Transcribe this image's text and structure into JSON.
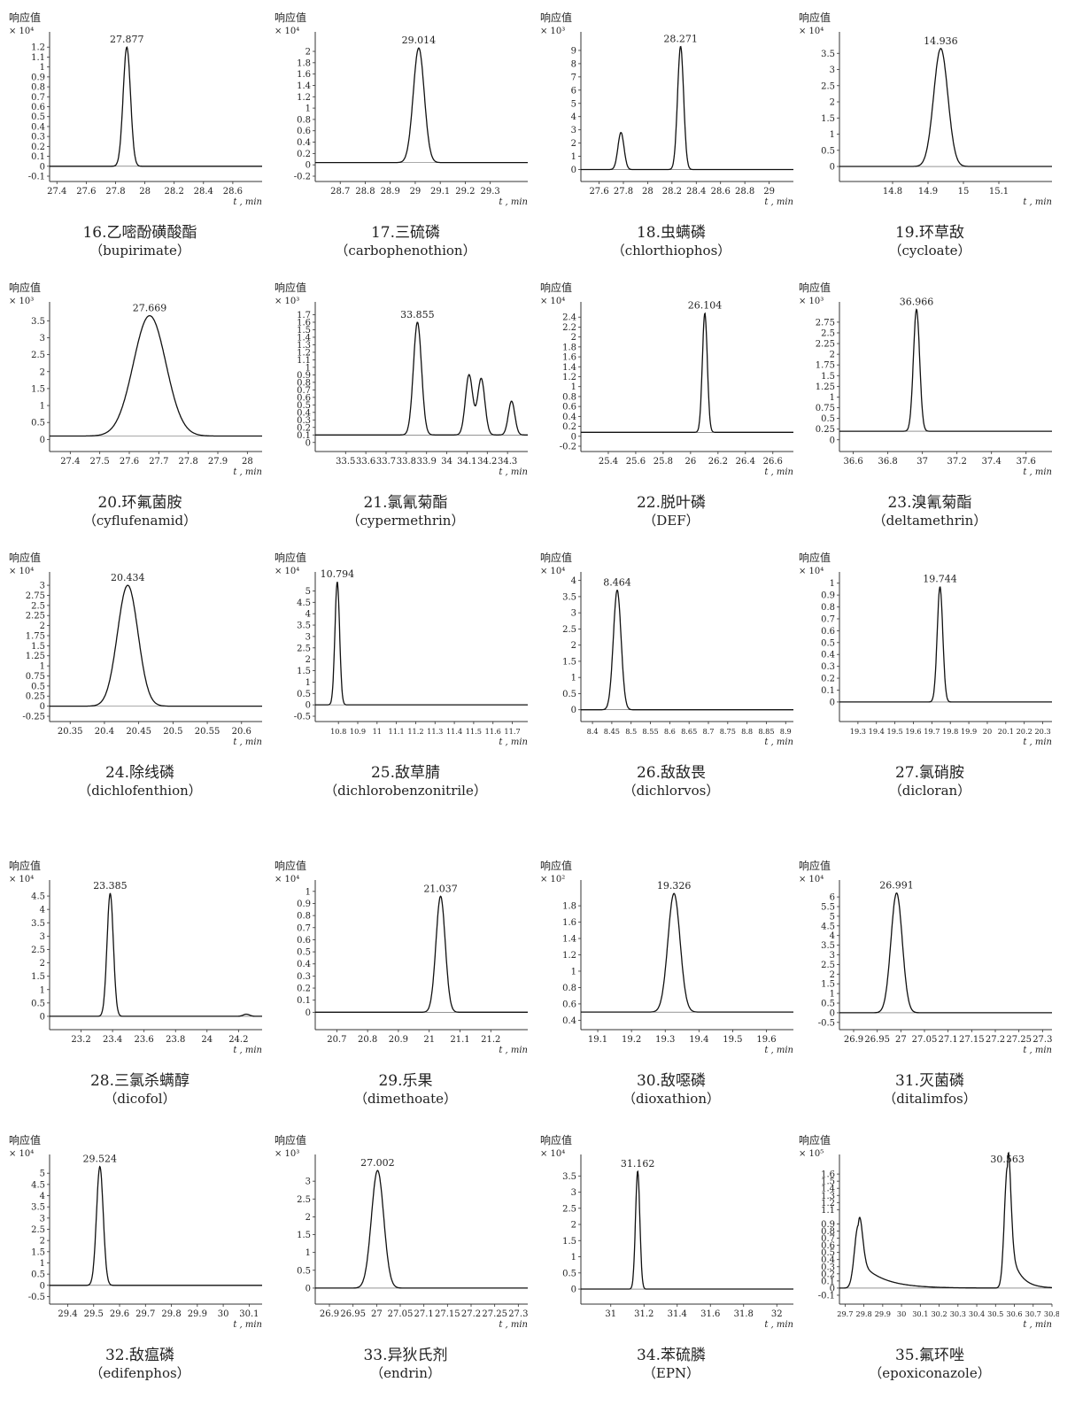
{
  "common": {
    "ylabel": "响应值",
    "xunit": "t , min"
  },
  "chart_data": [
    {
      "type": "line",
      "id": "16",
      "title_cn": "16.乙嘧酚磺酸酯",
      "title_en": "（bupirimate）",
      "scale": "× 10⁴",
      "ylim": [
        -0.1,
        1.3
      ],
      "yticks": [
        -0.1,
        0,
        0.1,
        0.2,
        0.3,
        0.4,
        0.5,
        0.6,
        0.7,
        0.8,
        0.9,
        1,
        1.1,
        1.2
      ],
      "xlim": [
        27.35,
        28.8
      ],
      "xticks": [
        27.4,
        27.6,
        27.8,
        28,
        28.2,
        28.4,
        28.6
      ],
      "peaks": [
        {
          "rt": 27.877,
          "h": 1.2,
          "w": 0.025,
          "label": "27.877"
        }
      ],
      "baseline": 0
    },
    {
      "type": "line",
      "id": "17",
      "title_cn": "17.三硫磷",
      "title_en": "（carbophenothion）",
      "scale": "× 10⁴",
      "ylim": [
        -0.2,
        2.25
      ],
      "yticks": [
        -0.2,
        0,
        0.2,
        0.4,
        0.6,
        0.8,
        1,
        1.2,
        1.4,
        1.6,
        1.8,
        2
      ],
      "xlim": [
        28.6,
        29.45
      ],
      "xticks": [
        28.7,
        28.8,
        28.9,
        29,
        29.1,
        29.2,
        29.3
      ],
      "peaks": [
        {
          "rt": 29.014,
          "h": 2.02,
          "w": 0.022,
          "label": "29.014"
        }
      ],
      "baseline": 0.04
    },
    {
      "type": "line",
      "id": "18",
      "title_cn": "18.虫螨磷",
      "title_en": "（chlorthiophos）",
      "scale": "× 10³",
      "ylim": [
        -0.5,
        10
      ],
      "yticks": [
        0,
        1,
        2,
        3,
        4,
        5,
        6,
        7,
        8,
        9
      ],
      "xlim": [
        27.45,
        29.2
      ],
      "xticks": [
        27.6,
        27.8,
        28,
        28.2,
        28.4,
        28.6,
        28.8,
        29
      ],
      "peaks": [
        {
          "rt": 27.78,
          "h": 2.8,
          "w": 0.025,
          "label": ""
        },
        {
          "rt": 28.271,
          "h": 9.3,
          "w": 0.025,
          "label": "28.271"
        }
      ],
      "baseline": 0
    },
    {
      "type": "line",
      "id": "19",
      "title_cn": "19.环草敌",
      "title_en": "（cycloate）",
      "scale": "× 10⁴",
      "ylim": [
        -0.3,
        4.0
      ],
      "yticks": [
        0,
        0.5,
        1,
        1.5,
        2,
        2.5,
        3,
        3.5
      ],
      "xlim": [
        14.65,
        15.25
      ],
      "xticks": [
        14.8,
        14.9,
        15,
        15.1
      ],
      "peaks": [
        {
          "rt": 14.936,
          "h": 3.65,
          "w": 0.02,
          "label": "14.936"
        }
      ],
      "baseline": 0
    },
    {
      "type": "line",
      "id": "20",
      "title_cn": "20.环氟菌胺",
      "title_en": "（cyflufenamid）",
      "scale": "× 10³",
      "ylim": [
        -0.2,
        3.9
      ],
      "yticks": [
        0,
        0.5,
        1,
        1.5,
        2,
        2.5,
        3,
        3.5
      ],
      "xlim": [
        27.33,
        28.05
      ],
      "xticks": [
        27.4,
        27.5,
        27.6,
        27.7,
        27.8,
        27.9,
        28
      ],
      "peaks": [
        {
          "rt": 27.669,
          "h": 3.55,
          "w": 0.055,
          "label": "27.669"
        }
      ],
      "baseline": 0.1
    },
    {
      "type": "line",
      "id": "21",
      "title_cn": "21.氯氰菊酯",
      "title_en": "（cypermethrin）",
      "scale": "× 10³",
      "ylim": [
        -0.05,
        1.8
      ],
      "yticks": [
        0,
        0.1,
        0.2,
        0.3,
        0.4,
        0.5,
        0.6,
        0.7,
        0.8,
        0.9,
        1,
        1.1,
        1.2,
        1.3,
        1.4,
        1.5,
        1.6,
        1.7
      ],
      "xlim": [
        33.35,
        34.4
      ],
      "xticks": [
        33.5,
        33.6,
        33.7,
        33.8,
        33.9,
        34,
        34.1,
        34.2,
        34.3
      ],
      "peaks": [
        {
          "rt": 33.855,
          "h": 1.5,
          "w": 0.02,
          "label": "33.855"
        },
        {
          "rt": 34.11,
          "h": 0.8,
          "w": 0.018,
          "label": ""
        },
        {
          "rt": 34.17,
          "h": 0.75,
          "w": 0.018,
          "label": ""
        },
        {
          "rt": 34.32,
          "h": 0.45,
          "w": 0.016,
          "label": ""
        }
      ],
      "baseline": 0.1
    },
    {
      "type": "line",
      "id": "22",
      "title_cn": "22.脱叶磷",
      "title_en": "（DEF）",
      "scale": "× 10⁴",
      "ylim": [
        -0.2,
        2.6
      ],
      "yticks": [
        -0.2,
        0,
        0.2,
        0.4,
        0.6,
        0.8,
        1,
        1.2,
        1.4,
        1.6,
        1.8,
        2,
        2.2,
        2.4
      ],
      "xlim": [
        25.2,
        26.75
      ],
      "xticks": [
        25.4,
        25.6,
        25.8,
        26,
        26.2,
        26.4,
        26.6
      ],
      "peaks": [
        {
          "rt": 26.104,
          "h": 2.4,
          "w": 0.018,
          "label": "26.104"
        }
      ],
      "baseline": 0.08
    },
    {
      "type": "line",
      "id": "23",
      "title_cn": "23.溴氰菊酯",
      "title_en": "（deltamethrin）",
      "scale": "× 10³",
      "ylim": [
        -0.15,
        3.1
      ],
      "yticks": [
        0,
        0.25,
        0.5,
        0.75,
        1,
        1.25,
        1.5,
        1.75,
        2,
        2.25,
        2.5,
        2.75
      ],
      "xlim": [
        36.52,
        37.75
      ],
      "xticks": [
        36.6,
        36.8,
        37,
        37.2,
        37.4,
        37.6
      ],
      "peaks": [
        {
          "rt": 36.966,
          "h": 2.85,
          "w": 0.018,
          "label": "36.966"
        }
      ],
      "baseline": 0.2
    },
    {
      "type": "line",
      "id": "24",
      "title_cn": "24.除线磷",
      "title_en": "（dichlofenthion）",
      "scale": "× 10⁴",
      "ylim": [
        -0.25,
        3.2
      ],
      "yticks": [
        -0.25,
        0,
        0.25,
        0.5,
        0.75,
        1,
        1.25,
        1.5,
        1.75,
        2,
        2.25,
        2.5,
        2.75,
        3
      ],
      "xlim": [
        20.32,
        20.63
      ],
      "xticks": [
        20.35,
        20.4,
        20.45,
        20.5,
        20.55,
        20.6
      ],
      "peaks": [
        {
          "rt": 20.434,
          "h": 3.0,
          "w": 0.015,
          "label": "20.434"
        }
      ],
      "baseline": 0
    },
    {
      "type": "line",
      "id": "25",
      "title_cn": "25.敌草腈",
      "title_en": "（dichlorobenzonitrile）",
      "scale": "× 10⁴",
      "ylim": [
        -0.5,
        5.6
      ],
      "yticks": [
        -0.5,
        0,
        0.5,
        1,
        1.5,
        2,
        2.5,
        3,
        3.5,
        4,
        4.5,
        5
      ],
      "xlim": [
        10.68,
        11.78
      ],
      "xticks": [
        10.8,
        10.9,
        11,
        11.1,
        11.2,
        11.3,
        11.4,
        11.5,
        11.6,
        11.7
      ],
      "peaks": [
        {
          "rt": 10.794,
          "h": 5.4,
          "w": 0.012,
          "label": "10.794"
        }
      ],
      "baseline": 0
    },
    {
      "type": "line",
      "id": "26",
      "title_cn": "26.敌敌畏",
      "title_en": "（dichlorvos）",
      "scale": "× 10⁴",
      "ylim": [
        -0.2,
        4.1
      ],
      "yticks": [
        0,
        0.5,
        1,
        1.5,
        2,
        2.5,
        3,
        3.5,
        4
      ],
      "xlim": [
        8.37,
        8.92
      ],
      "xticks": [
        8.4,
        8.45,
        8.5,
        8.55,
        8.6,
        8.65,
        8.7,
        8.75,
        8.8,
        8.85,
        8.9
      ],
      "peaks": [
        {
          "rt": 8.464,
          "h": 3.7,
          "w": 0.01,
          "label": "8.464"
        }
      ],
      "baseline": 0
    },
    {
      "type": "line",
      "id": "27",
      "title_cn": "27.氯硝胺",
      "title_en": "（dicloran）",
      "scale": "× 10⁴",
      "ylim": [
        -0.12,
        1.05
      ],
      "yticks": [
        0,
        0.1,
        0.2,
        0.3,
        0.4,
        0.5,
        0.6,
        0.7,
        0.8,
        0.9,
        1
      ],
      "xlim": [
        19.2,
        20.35
      ],
      "xticks": [
        19.3,
        19.4,
        19.5,
        19.6,
        19.7,
        19.8,
        19.9,
        20,
        20.1,
        20.2,
        20.3
      ],
      "peaks": [
        {
          "rt": 19.744,
          "h": 0.97,
          "w": 0.015,
          "label": "19.744"
        }
      ],
      "baseline": 0
    },
    {
      "type": "line",
      "id": "28",
      "title_cn": "28.三氯杀螨醇",
      "title_en": "（dicofol）",
      "scale": "× 10⁴",
      "ylim": [
        -0.3,
        4.9
      ],
      "yticks": [
        0,
        0.5,
        1,
        1.5,
        2,
        2.5,
        3,
        3.5,
        4,
        4.5
      ],
      "xlim": [
        23.0,
        24.35
      ],
      "xticks": [
        23.2,
        23.4,
        23.6,
        23.8,
        24,
        24.2
      ],
      "peaks": [
        {
          "rt": 23.385,
          "h": 4.6,
          "w": 0.02,
          "label": "23.385"
        },
        {
          "rt": 24.25,
          "h": 0.08,
          "w": 0.02,
          "label": ""
        }
      ],
      "baseline": 0
    },
    {
      "type": "line",
      "id": "29",
      "title_cn": "29.乐果",
      "title_en": "（dimethoate）",
      "scale": "× 10⁴",
      "ylim": [
        -0.1,
        1.05
      ],
      "yticks": [
        0,
        0.1,
        0.2,
        0.3,
        0.4,
        0.5,
        0.6,
        0.7,
        0.8,
        0.9,
        1
      ],
      "xlim": [
        20.63,
        21.32
      ],
      "xticks": [
        20.7,
        20.8,
        20.9,
        21,
        21.1,
        21.2
      ],
      "peaks": [
        {
          "rt": 21.037,
          "h": 0.96,
          "w": 0.015,
          "label": "21.037"
        }
      ],
      "baseline": 0
    },
    {
      "type": "line",
      "id": "30",
      "title_cn": "30.敌噁磷",
      "title_en": "（dioxathion）",
      "scale": "× 10²",
      "ylim": [
        0.35,
        2.05
      ],
      "yticks": [
        0.4,
        0.6,
        0.8,
        1,
        1.2,
        1.4,
        1.6,
        1.8
      ],
      "xlim": [
        19.05,
        19.68
      ],
      "xticks": [
        19.1,
        19.2,
        19.3,
        19.4,
        19.5,
        19.6
      ],
      "peaks": [
        {
          "rt": 19.326,
          "h": 1.45,
          "w": 0.018,
          "label": "19.326"
        }
      ],
      "baseline": 0.5
    },
    {
      "type": "line",
      "id": "31",
      "title_cn": "31.灭菌磷",
      "title_en": "（ditalimfos）",
      "scale": "× 10⁴",
      "ylim": [
        -0.6,
        6.6
      ],
      "yticks": [
        -0.5,
        0,
        0.5,
        1,
        1.5,
        2,
        2.5,
        3,
        3.5,
        4,
        4.5,
        5,
        5.5,
        6
      ],
      "xlim": [
        26.87,
        27.32
      ],
      "xticks": [
        26.9,
        26.95,
        27,
        27.05,
        27.1,
        27.15,
        27.2,
        27.25,
        27.3
      ],
      "peaks": [
        {
          "rt": 26.991,
          "h": 6.2,
          "w": 0.012,
          "label": "26.991"
        }
      ],
      "baseline": 0
    },
    {
      "type": "line",
      "id": "32",
      "title_cn": "32.敌瘟磷",
      "title_en": "（edifenphos）",
      "scale": "× 10⁴",
      "ylim": [
        -0.6,
        5.6
      ],
      "yticks": [
        -0.5,
        0,
        0.5,
        1,
        1.5,
        2,
        2.5,
        3,
        3.5,
        4,
        4.5,
        5
      ],
      "xlim": [
        29.33,
        30.15
      ],
      "xticks": [
        29.4,
        29.5,
        29.6,
        29.7,
        29.8,
        29.9,
        30,
        30.1
      ],
      "peaks": [
        {
          "rt": 29.524,
          "h": 5.3,
          "w": 0.013,
          "label": "29.524"
        }
      ],
      "baseline": 0
    },
    {
      "type": "line",
      "id": "33",
      "title_cn": "33.异狄氏剂",
      "title_en": "（endrin）",
      "scale": "× 10³",
      "ylim": [
        -0.3,
        3.6
      ],
      "yticks": [
        0,
        0.5,
        1,
        1.5,
        2,
        2.5,
        3
      ],
      "xlim": [
        26.87,
        27.32
      ],
      "xticks": [
        26.9,
        26.95,
        27,
        27.05,
        27.1,
        27.15,
        27.2,
        27.25,
        27.3
      ],
      "peaks": [
        {
          "rt": 27.002,
          "h": 3.3,
          "w": 0.013,
          "label": "27.002"
        }
      ],
      "baseline": 0
    },
    {
      "type": "line",
      "id": "34",
      "title_cn": "34.苯硫膦",
      "title_en": "（EPN）",
      "scale": "× 10⁴",
      "ylim": [
        -0.3,
        4.0
      ],
      "yticks": [
        0,
        0.5,
        1,
        1.5,
        2,
        2.5,
        3,
        3.5
      ],
      "xlim": [
        30.82,
        32.1
      ],
      "xticks": [
        31,
        31.2,
        31.4,
        31.6,
        31.8,
        32
      ],
      "peaks": [
        {
          "rt": 31.162,
          "h": 3.65,
          "w": 0.013,
          "label": "31.162"
        }
      ],
      "baseline": 0
    },
    {
      "type": "line",
      "id": "35",
      "title_cn": "35.氟环唑",
      "title_en": "（epoxiconazole）",
      "scale": "× 10⁵",
      "ylim": [
        -0.15,
        1.8
      ],
      "yticks": [
        -0.1,
        0,
        0.1,
        0.2,
        0.3,
        0.4,
        0.5,
        0.6,
        0.7,
        0.8,
        0.9,
        1.1,
        1.2,
        1.3,
        1.4,
        1.5,
        1.6
      ],
      "xlim": [
        29.67,
        30.8
      ],
      "xticks": [
        29.7,
        29.8,
        29.9,
        30,
        30.1,
        30.2,
        30.3,
        30.4,
        30.5,
        30.6,
        30.7,
        30.8
      ],
      "peaks": [
        {
          "rt": 29.77,
          "h": 0.88,
          "w": 0.02,
          "tail": 0.12,
          "label": ""
        },
        {
          "rt": 30.563,
          "h": 1.7,
          "w": 0.016,
          "tail": 0.05,
          "label": "30.563"
        }
      ],
      "baseline": 0
    }
  ]
}
